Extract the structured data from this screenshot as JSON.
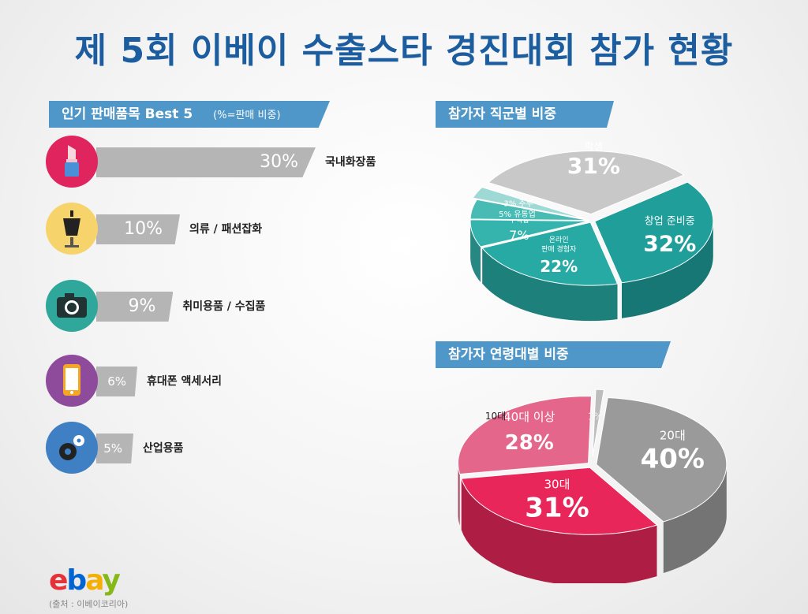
{
  "title": "제 5회 이베이 수출스타 경진대회 참가 현황",
  "left_section": {
    "ribbon": "인기 판매품목 Best 5",
    "ribbon_note": "(%=판매 비중)"
  },
  "job_section": {
    "ribbon": "참가자 직군별 비중"
  },
  "age_section": {
    "ribbon": "참가자 연령대별 비중"
  },
  "icons": [
    "lipstick-icon",
    "dress-icon",
    "camera-icon",
    "phone-icon",
    "gears-icon"
  ],
  "colors": {
    "title": "#1c5d9f",
    "ribbon": "#4f97c8",
    "bar": "#b5b5b5",
    "icon_bgs": [
      "#e0245e",
      "#f6d36b",
      "#2fa79b",
      "#8e4b9c",
      "#3f7fc4"
    ]
  },
  "chart_data": [
    {
      "type": "bar",
      "title": "인기 판매품목 Best 5",
      "subtitle": "(%=판매 비중)",
      "categories": [
        "국내화장품",
        "의류 / 패션잡화",
        "취미용품 / 수집품",
        "휴대폰 액세서리",
        "산업용품"
      ],
      "values": [
        30,
        10,
        9,
        6,
        5
      ],
      "labels": [
        "30%",
        "10%",
        "9%",
        "6%",
        "5%"
      ],
      "unit": "%"
    },
    {
      "type": "pie",
      "title": "참가자 직군별 비중",
      "slices": [
        {
          "name": "학생",
          "value": 31,
          "label": "31%",
          "color": "#c8c8c8"
        },
        {
          "name": "창업 준비중",
          "value": 32,
          "label": "32%",
          "color": "#1f9e9a"
        },
        {
          "name": "온라인 판매 경험자",
          "value": 22,
          "label": "22%",
          "color": "#28aaa4"
        },
        {
          "name": "무역업",
          "value": 7,
          "label": "7%",
          "color": "#34b4ad"
        },
        {
          "name": "유통업",
          "value": 5,
          "label": "5%",
          "color": "#48bcb4"
        },
        {
          "name": "주부",
          "value": 3,
          "label": "3%",
          "color": "#9fd9d5"
        }
      ]
    },
    {
      "type": "pie",
      "title": "참가자 연령대별 비중",
      "slices": [
        {
          "name": "20대",
          "value": 40,
          "label": "40%",
          "color": "#9a9a9a"
        },
        {
          "name": "30대",
          "value": 31,
          "label": "31%",
          "color": "#e8265a"
        },
        {
          "name": "40대 이상",
          "value": 28,
          "label": "28%",
          "color": "#e4668a"
        },
        {
          "name": "10대",
          "value": 1,
          "label": "1%",
          "color": "#bdbdbd"
        }
      ]
    }
  ],
  "logo": {
    "text": "ebay",
    "letters": [
      "e",
      "b",
      "a",
      "y"
    ],
    "colors": [
      "#e53238",
      "#0064d2",
      "#f5af02",
      "#86b817"
    ]
  },
  "source": "(출처 : 이베이코리아)"
}
